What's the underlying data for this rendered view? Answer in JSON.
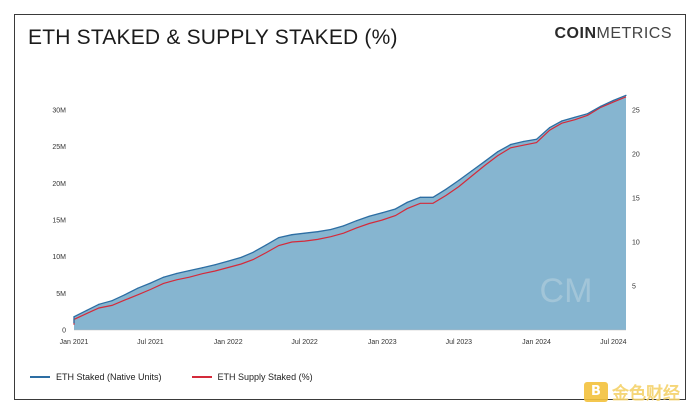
{
  "header": {
    "title": "ETH STAKED & SUPPLY STAKED (%)",
    "logo_bold": "COIN",
    "logo_light": "METRICS"
  },
  "colors": {
    "area_fill": "#86b5d0",
    "native_line": "#2d6ea3",
    "supply_line": "#d42a3a"
  },
  "legend": {
    "native_label": "ETH Staked (Native Units)",
    "supply_label": "ETH Supply Staked (%)"
  },
  "watermark": {
    "text": "金色财经",
    "icon": "coin-logo-icon"
  },
  "chart_data": {
    "type": "area",
    "xlabel": "",
    "ylabel": "",
    "x_tick_labels": [
      "Jan 2021",
      "Jul 2021",
      "Jan 2022",
      "Jul 2022",
      "Jan 2023",
      "Jul 2023",
      "Jan 2024",
      "Jul 2024"
    ],
    "y_left_tick_labels": [
      "0",
      "5M",
      "10M",
      "15M",
      "20M",
      "25M",
      "30M"
    ],
    "y_left_ticks": [
      0,
      5000000,
      10000000,
      15000000,
      20000000,
      25000000,
      30000000
    ],
    "y_right_tick_labels": [
      "5",
      "10",
      "15",
      "20",
      "25"
    ],
    "y_right_ticks": [
      5,
      10,
      15,
      20,
      25
    ],
    "x_range": [
      "2021-01-01",
      "2024-07-31"
    ],
    "y_left_range": [
      0,
      33000000
    ],
    "y_right_range": [
      0,
      27.5
    ],
    "grid": false,
    "legend_position": "bottom-left",
    "x": [
      "2020-12-01",
      "2021-01-01",
      "2021-02-01",
      "2021-03-01",
      "2021-04-01",
      "2021-05-01",
      "2021-06-01",
      "2021-07-01",
      "2021-08-01",
      "2021-09-01",
      "2021-10-01",
      "2021-11-01",
      "2021-12-01",
      "2022-01-01",
      "2022-02-01",
      "2022-03-01",
      "2022-04-01",
      "2022-05-01",
      "2022-06-01",
      "2022-07-01",
      "2022-08-01",
      "2022-09-01",
      "2022-10-01",
      "2022-11-01",
      "2022-12-01",
      "2023-01-01",
      "2023-02-01",
      "2023-03-01",
      "2023-04-01",
      "2023-05-01",
      "2023-06-01",
      "2023-07-01",
      "2023-08-01",
      "2023-09-01",
      "2023-10-01",
      "2023-11-01",
      "2023-12-01",
      "2024-01-01",
      "2024-02-01",
      "2024-03-01",
      "2024-04-01",
      "2024-05-01",
      "2024-06-01",
      "2024-07-01",
      "2024-07-31"
    ],
    "series": [
      {
        "name": "ETH Staked (Native Units)",
        "values": [
          1000000,
          1800000,
          2700000,
          3500000,
          4000000,
          4800000,
          5700000,
          6400000,
          7200000,
          7700000,
          8100000,
          8500000,
          8900000,
          9400000,
          9900000,
          10600000,
          11600000,
          12600000,
          13000000,
          13200000,
          13400000,
          13700000,
          14200000,
          14900000,
          15500000,
          16000000,
          16500000,
          17400000,
          18100000,
          18100000,
          19200000,
          20400000,
          21700000,
          23000000,
          24300000,
          25300000,
          25700000,
          26000000,
          27600000,
          28500000,
          29000000,
          29500000,
          30500000,
          31300000,
          32000000
        ]
      },
      {
        "name": "ETH Supply Staked (%)",
        "values": [
          0.6,
          1.2,
          1.9,
          2.5,
          2.8,
          3.4,
          4.0,
          4.6,
          5.3,
          5.7,
          6.0,
          6.4,
          6.7,
          7.1,
          7.5,
          8.0,
          8.8,
          9.6,
          10.0,
          10.1,
          10.3,
          10.6,
          11.0,
          11.6,
          12.1,
          12.5,
          13.0,
          13.8,
          14.4,
          14.4,
          15.3,
          16.3,
          17.5,
          18.7,
          19.8,
          20.7,
          21.0,
          21.3,
          22.7,
          23.5,
          23.9,
          24.4,
          25.3,
          25.9,
          26.5
        ]
      }
    ]
  }
}
